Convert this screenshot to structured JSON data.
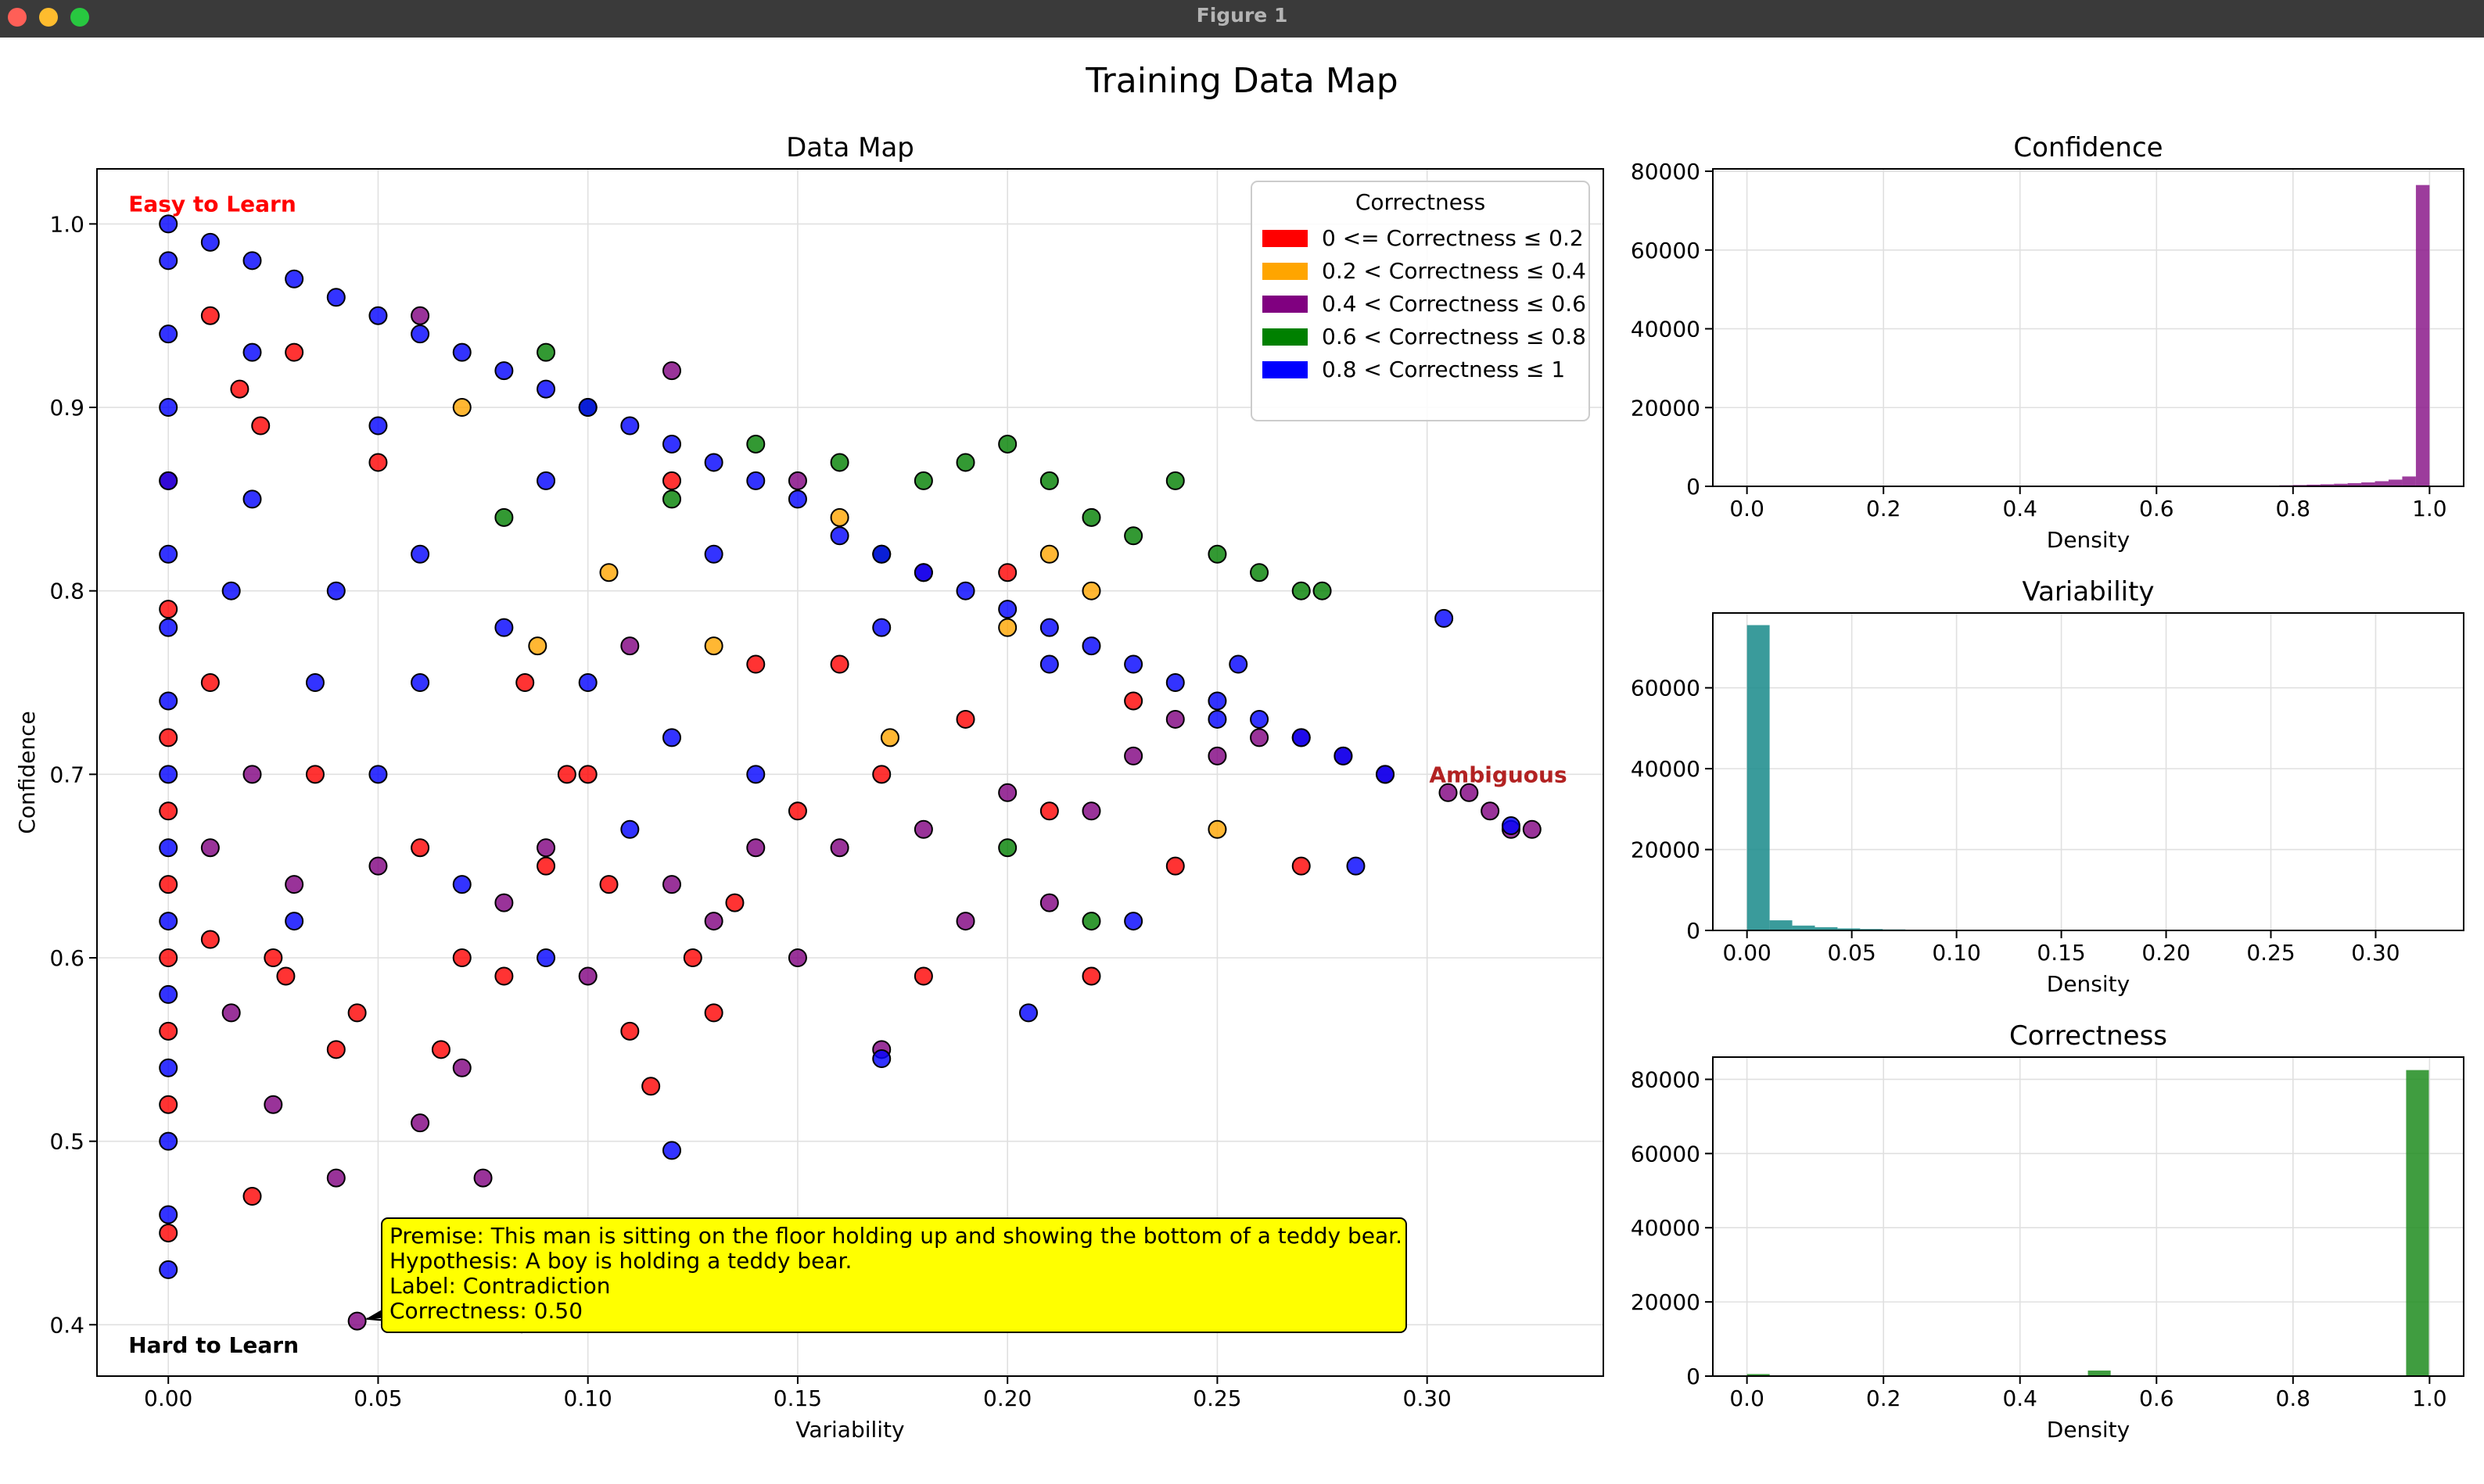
{
  "window": {
    "title": "Figure 1",
    "controls": {
      "close_color": "#ff5f57",
      "minimize_color": "#febc2e",
      "maximize_color": "#28c840"
    }
  },
  "figure_title": "Training Data Map",
  "chart_data": [
    {
      "type": "scatter",
      "title": "Data Map",
      "xlabel": "Variability",
      "ylabel": "Confidence",
      "xlim": [
        -0.017,
        0.342
      ],
      "ylim": [
        0.372,
        1.03
      ],
      "xticks": [
        0.0,
        0.05,
        0.1,
        0.15,
        0.2,
        0.25,
        0.3
      ],
      "xtick_labels": [
        "0.00",
        "0.05",
        "0.10",
        "0.15",
        "0.20",
        "0.25",
        "0.30"
      ],
      "yticks": [
        0.4,
        0.5,
        0.6,
        0.7,
        0.8,
        0.9,
        1.0
      ],
      "ytick_labels": [
        "0.4",
        "0.5",
        "0.6",
        "0.7",
        "0.8",
        "0.9",
        "1.0"
      ],
      "grid": true,
      "legend": {
        "title": "Correctness",
        "placement": "top-right",
        "entries": [
          {
            "label": "0 <= Correctness ≤ 0.2",
            "color": "#ff0000"
          },
          {
            "label": "0.2 < Correctness ≤ 0.4",
            "color": "#ffa500"
          },
          {
            "label": "0.4 < Correctness ≤ 0.6",
            "color": "#800080"
          },
          {
            "label": "0.6 < Correctness ≤ 0.8",
            "color": "#008000"
          },
          {
            "label": "0.8 < Correctness ≤ 1",
            "color": "#0000ff"
          }
        ]
      },
      "region_labels": [
        {
          "text": "Easy to Learn",
          "color": "#ff0000",
          "x": -0.0095,
          "y": 1.011
        },
        {
          "text": "Ambiguous",
          "color": "#b22222",
          "x": 0.3005,
          "y": 0.7
        },
        {
          "text": "Hard to Learn",
          "color": "#000000",
          "x": -0.0095,
          "y": 0.389
        }
      ],
      "annotation": {
        "lines": [
          "Premise: This man is sitting on the floor holding up and showing the bottom of a teddy bear.",
          "Hypothesis: A boy is holding a teddy bear.",
          "Label: Contradiction",
          "Correctness: 0.50"
        ],
        "background": "#ffff00",
        "point": {
          "x": 0.045,
          "y": 0.402
        }
      },
      "series": [
        {
          "name": "0 <= Correctness ≤ 0.2",
          "color": "#ff0000",
          "points": [
            [
              0,
              0.45
            ],
            [
              0,
              0.52
            ],
            [
              0,
              0.56
            ],
            [
              0,
              0.6
            ],
            [
              0,
              0.64
            ],
            [
              0,
              0.68
            ],
            [
              0,
              0.72
            ],
            [
              0,
              0.79
            ],
            [
              0,
              0.86
            ],
            [
              0.01,
              0.61
            ],
            [
              0.01,
              0.75
            ],
            [
              0.01,
              0.95
            ],
            [
              0.017,
              0.91
            ],
            [
              0.02,
              0.47
            ],
            [
              0.022,
              0.89
            ],
            [
              0.025,
              0.6
            ],
            [
              0.028,
              0.59
            ],
            [
              0.03,
              0.93
            ],
            [
              0.035,
              0.7
            ],
            [
              0.04,
              0.55
            ],
            [
              0.045,
              0.57
            ],
            [
              0.05,
              0.87
            ],
            [
              0.06,
              0.66
            ],
            [
              0.065,
              0.55
            ],
            [
              0.07,
              0.6
            ],
            [
              0.08,
              0.59
            ],
            [
              0.085,
              0.75
            ],
            [
              0.09,
              0.65
            ],
            [
              0.095,
              0.7
            ],
            [
              0.1,
              0.7
            ],
            [
              0.105,
              0.64
            ],
            [
              0.11,
              0.56
            ],
            [
              0.115,
              0.53
            ],
            [
              0.12,
              0.86
            ],
            [
              0.125,
              0.6
            ],
            [
              0.13,
              0.57
            ],
            [
              0.135,
              0.63
            ],
            [
              0.14,
              0.76
            ],
            [
              0.15,
              0.68
            ],
            [
              0.16,
              0.76
            ],
            [
              0.17,
              0.7
            ],
            [
              0.18,
              0.59
            ],
            [
              0.19,
              0.73
            ],
            [
              0.2,
              0.81
            ],
            [
              0.21,
              0.68
            ],
            [
              0.22,
              0.59
            ],
            [
              0.23,
              0.74
            ],
            [
              0.24,
              0.65
            ],
            [
              0.27,
              0.65
            ]
          ]
        },
        {
          "name": "0.2 < Correctness ≤ 0.4",
          "color": "#ffa500",
          "points": [
            [
              0.07,
              0.9
            ],
            [
              0.088,
              0.77
            ],
            [
              0.105,
              0.81
            ],
            [
              0.13,
              0.77
            ],
            [
              0.16,
              0.84
            ],
            [
              0.172,
              0.72
            ],
            [
              0.2,
              0.78
            ],
            [
              0.21,
              0.82
            ],
            [
              0.22,
              0.8
            ],
            [
              0.25,
              0.67
            ]
          ]
        },
        {
          "name": "0.4 < Correctness ≤ 0.6",
          "color": "#800080",
          "points": [
            [
              0.01,
              0.66
            ],
            [
              0.015,
              0.57
            ],
            [
              0.02,
              0.7
            ],
            [
              0.025,
              0.52
            ],
            [
              0.03,
              0.64
            ],
            [
              0.04,
              0.48
            ],
            [
              0.045,
              0.402
            ],
            [
              0.05,
              0.65
            ],
            [
              0.06,
              0.51
            ],
            [
              0.07,
              0.54
            ],
            [
              0.075,
              0.48
            ],
            [
              0.08,
              0.63
            ],
            [
              0.09,
              0.66
            ],
            [
              0.1,
              0.59
            ],
            [
              0.11,
              0.77
            ],
            [
              0.12,
              0.64
            ],
            [
              0.13,
              0.62
            ],
            [
              0.14,
              0.66
            ],
            [
              0.15,
              0.6
            ],
            [
              0.16,
              0.66
            ],
            [
              0.17,
              0.55
            ],
            [
              0.18,
              0.67
            ],
            [
              0.19,
              0.62
            ],
            [
              0.2,
              0.69
            ],
            [
              0.21,
              0.63
            ],
            [
              0.22,
              0.68
            ],
            [
              0.23,
              0.71
            ],
            [
              0.24,
              0.73
            ],
            [
              0.25,
              0.71
            ],
            [
              0.26,
              0.72
            ],
            [
              0.27,
              0.72
            ],
            [
              0.28,
              0.71
            ],
            [
              0.29,
              0.7
            ],
            [
              0.305,
              0.69
            ],
            [
              0.31,
              0.69
            ],
            [
              0.315,
              0.68
            ],
            [
              0.32,
              0.67
            ],
            [
              0.325,
              0.67
            ],
            [
              0.12,
              0.92
            ],
            [
              0.15,
              0.86
            ],
            [
              0.18,
              0.81
            ],
            [
              0.06,
              0.95
            ]
          ]
        },
        {
          "name": "0.6 < Correctness ≤ 0.8",
          "color": "#008000",
          "points": [
            [
              0.08,
              0.84
            ],
            [
              0.09,
              0.93
            ],
            [
              0.1,
              0.9
            ],
            [
              0.12,
              0.85
            ],
            [
              0.14,
              0.88
            ],
            [
              0.16,
              0.87
            ],
            [
              0.17,
              0.82
            ],
            [
              0.18,
              0.86
            ],
            [
              0.19,
              0.87
            ],
            [
              0.2,
              0.88
            ],
            [
              0.21,
              0.86
            ],
            [
              0.22,
              0.84
            ],
            [
              0.23,
              0.83
            ],
            [
              0.24,
              0.86
            ],
            [
              0.25,
              0.82
            ],
            [
              0.26,
              0.81
            ],
            [
              0.27,
              0.8
            ],
            [
              0.275,
              0.8
            ],
            [
              0.2,
              0.66
            ],
            [
              0.22,
              0.62
            ]
          ]
        },
        {
          "name": "0.8 < Correctness ≤ 1",
          "color": "#0000ff",
          "points": [
            [
              0,
              0.43
            ],
            [
              0,
              0.46
            ],
            [
              0,
              0.5
            ],
            [
              0,
              0.54
            ],
            [
              0,
              0.58
            ],
            [
              0,
              0.62
            ],
            [
              0,
              0.66
            ],
            [
              0,
              0.7
            ],
            [
              0,
              0.74
            ],
            [
              0,
              0.78
            ],
            [
              0,
              0.82
            ],
            [
              0,
              0.86
            ],
            [
              0,
              0.9
            ],
            [
              0,
              0.94
            ],
            [
              0,
              0.98
            ],
            [
              0,
              1.0
            ],
            [
              0.01,
              0.99
            ],
            [
              0.02,
              0.98
            ],
            [
              0.03,
              0.97
            ],
            [
              0.04,
              0.96
            ],
            [
              0.05,
              0.95
            ],
            [
              0.06,
              0.94
            ],
            [
              0.07,
              0.93
            ],
            [
              0.08,
              0.92
            ],
            [
              0.09,
              0.91
            ],
            [
              0.1,
              0.9
            ],
            [
              0.11,
              0.89
            ],
            [
              0.12,
              0.88
            ],
            [
              0.13,
              0.87
            ],
            [
              0.14,
              0.86
            ],
            [
              0.15,
              0.85
            ],
            [
              0.16,
              0.83
            ],
            [
              0.17,
              0.82
            ],
            [
              0.18,
              0.81
            ],
            [
              0.19,
              0.8
            ],
            [
              0.2,
              0.79
            ],
            [
              0.21,
              0.78
            ],
            [
              0.22,
              0.77
            ],
            [
              0.23,
              0.76
            ],
            [
              0.24,
              0.75
            ],
            [
              0.25,
              0.74
            ],
            [
              0.26,
              0.73
            ],
            [
              0.27,
              0.72
            ],
            [
              0.28,
              0.71
            ],
            [
              0.29,
              0.7
            ],
            [
              0.304,
              0.785
            ],
            [
              0.32,
              0.672
            ],
            [
              0.02,
              0.85
            ],
            [
              0.04,
              0.8
            ],
            [
              0.06,
              0.82
            ],
            [
              0.08,
              0.78
            ],
            [
              0.1,
              0.75
            ],
            [
              0.12,
              0.72
            ],
            [
              0.14,
              0.7
            ],
            [
              0.05,
              0.7
            ],
            [
              0.03,
              0.62
            ],
            [
              0.07,
              0.64
            ],
            [
              0.09,
              0.6
            ],
            [
              0.12,
              0.495
            ],
            [
              0.17,
              0.545
            ],
            [
              0.205,
              0.57
            ],
            [
              0.23,
              0.62
            ],
            [
              0.255,
              0.76
            ],
            [
              0.283,
              0.65
            ],
            [
              0.02,
              0.93
            ],
            [
              0.05,
              0.89
            ],
            [
              0.09,
              0.86
            ],
            [
              0.13,
              0.82
            ],
            [
              0.17,
              0.78
            ],
            [
              0.21,
              0.76
            ],
            [
              0.25,
              0.73
            ],
            [
              0.11,
              0.67
            ],
            [
              0.06,
              0.75
            ],
            [
              0.015,
              0.8
            ],
            [
              0.035,
              0.75
            ]
          ]
        }
      ]
    },
    {
      "type": "bar",
      "title": "Confidence",
      "xlabel": "Density",
      "ylabel": "",
      "xlim": [
        -0.05,
        1.05
      ],
      "ylim": [
        0,
        80600
      ],
      "xticks": [
        0.0,
        0.2,
        0.4,
        0.6,
        0.8,
        1.0
      ],
      "xtick_labels": [
        "0.0",
        "0.2",
        "0.4",
        "0.6",
        "0.8",
        "1.0"
      ],
      "yticks": [
        0,
        20000,
        40000,
        60000,
        80000
      ],
      "ytick_labels": [
        "0",
        "20000",
        "40000",
        "60000",
        "80000"
      ],
      "grid": true,
      "bar_color": "#8b1a8b",
      "bin_start": 0.4,
      "bin_width": 0.02,
      "values": [
        20,
        20,
        20,
        20,
        20,
        25,
        30,
        35,
        40,
        40,
        45,
        50,
        60,
        70,
        80,
        100,
        120,
        150,
        200,
        260,
        330,
        420,
        520,
        650,
        800,
        1000,
        1300,
        1700,
        2500,
        76500
      ]
    },
    {
      "type": "bar",
      "title": "Variability",
      "xlabel": "Density",
      "ylabel": "",
      "xlim": [
        -0.0163,
        0.342
      ],
      "ylim": [
        0,
        78500
      ],
      "xticks": [
        0.0,
        0.05,
        0.1,
        0.15,
        0.2,
        0.25,
        0.3
      ],
      "xtick_labels": [
        "0.00",
        "0.05",
        "0.10",
        "0.15",
        "0.20",
        "0.25",
        "0.30"
      ],
      "yticks": [
        0,
        20000,
        40000,
        60000
      ],
      "ytick_labels": [
        "0",
        "20000",
        "40000",
        "60000"
      ],
      "grid": true,
      "bar_color": "#178a8a",
      "bin_start": 0.0,
      "bin_width": 0.0108,
      "values": [
        75500,
        2500,
        1200,
        800,
        500,
        350,
        250,
        180,
        130,
        100,
        80,
        60,
        45,
        35,
        25,
        20,
        15,
        12,
        10,
        8,
        6,
        5,
        4,
        3,
        2,
        2,
        1,
        1,
        1,
        1
      ]
    },
    {
      "type": "bar",
      "title": "Correctness",
      "xlabel": "Density",
      "ylabel": "",
      "xlim": [
        -0.05,
        1.05
      ],
      "ylim": [
        0,
        86000
      ],
      "xticks": [
        0.0,
        0.2,
        0.4,
        0.6,
        0.8,
        1.0
      ],
      "xtick_labels": [
        "0.0",
        "0.2",
        "0.4",
        "0.6",
        "0.8",
        "1.0"
      ],
      "yticks": [
        0,
        20000,
        40000,
        60000,
        80000
      ],
      "ytick_labels": [
        "0",
        "20000",
        "40000",
        "60000",
        "80000"
      ],
      "grid": true,
      "bar_color": "#1e8c1e",
      "bin_start": 0.0,
      "bin_width": 0.0333,
      "values": [
        550,
        0,
        0,
        0,
        0,
        0,
        0,
        0,
        0,
        0,
        0,
        0,
        0,
        0,
        0,
        1500,
        0,
        0,
        0,
        0,
        0,
        0,
        0,
        0,
        0,
        0,
        0,
        0,
        0,
        82500
      ]
    }
  ]
}
